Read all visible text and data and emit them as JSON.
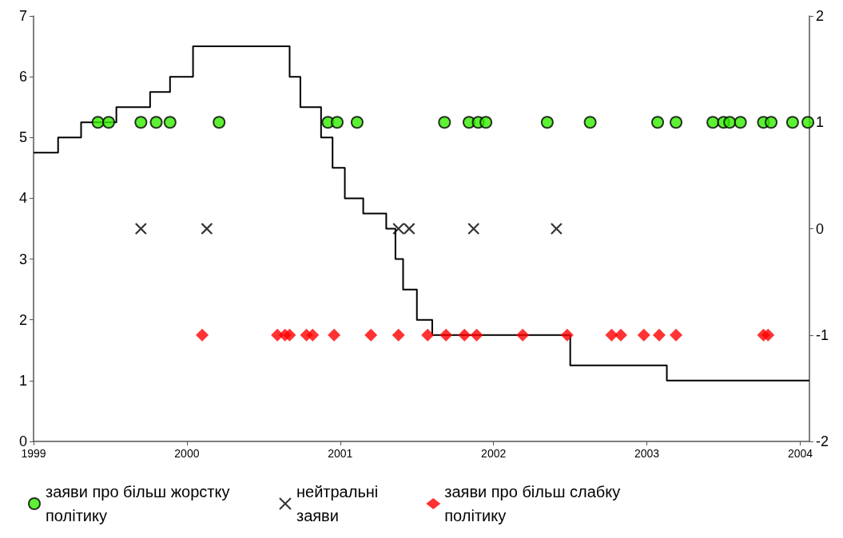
{
  "chart_data": {
    "type": "scatter",
    "xlim": [
      1999,
      2004.06
    ],
    "xticks": [
      1999,
      2000,
      2001,
      2002,
      2003,
      2004
    ],
    "ylim": [
      0,
      7
    ],
    "yticks": [
      0,
      1,
      2,
      3,
      4,
      5,
      6,
      7
    ],
    "y2lim": [
      -2,
      2
    ],
    "y2ticks": [
      -2,
      -1,
      0,
      1,
      2
    ],
    "grid": false,
    "legend": "bottom",
    "series": [
      {
        "type": "step",
        "color": "#000000",
        "marker": "none",
        "x": [
          1999,
          1999.16,
          1999.31,
          1999.54,
          1999.76,
          1999.89,
          2000.04,
          2000.67,
          2000.74,
          2000.875,
          2000.95,
          2001.03,
          2001.15,
          2001.3,
          2001.36,
          2001.41,
          2001.5,
          2001.6,
          2002.5,
          2003.13,
          2004.06
        ],
        "values": [
          4.75,
          5,
          5.25,
          5.5,
          5.75,
          6,
          6.5,
          6,
          5.5,
          5,
          4.5,
          4,
          3.75,
          3.5,
          3,
          2.5,
          2,
          1.75,
          1.25,
          1,
          1
        ]
      },
      {
        "name": "заяви про більш жорстку політику",
        "color": "#33ee00",
        "marker": "circle",
        "axis": "y2",
        "x": [
          1999.42,
          1999.49,
          1999.7,
          1999.8,
          1999.89,
          2000.21,
          2000.92,
          2000.98,
          2001.11,
          2001.68,
          2001.84,
          2001.9,
          2001.95,
          2002.35,
          2002.63,
          2003.07,
          2003.19,
          2003.43,
          2003.5,
          2003.54,
          2003.61,
          2003.76,
          2003.81,
          2003.95,
          2004.05
        ],
        "values": [
          1,
          1,
          1,
          1,
          1,
          1,
          1,
          1,
          1,
          1,
          1,
          1,
          1,
          1,
          1,
          1,
          1,
          1,
          1,
          1,
          1,
          1,
          1,
          1,
          1
        ]
      },
      {
        "name": "нейтральні заяви",
        "color": "#000000",
        "marker": "cross",
        "axis": "y2",
        "x": [
          1999.7,
          2000.13,
          2001.38,
          2001.45,
          2001.87,
          2002.41
        ],
        "values": [
          0,
          0,
          0,
          0,
          0,
          0
        ]
      },
      {
        "name": "заяви про більш слабку політику",
        "color": "#ff0000",
        "marker": "diamond",
        "axis": "y2",
        "x": [
          2000.1,
          2000.59,
          2000.64,
          2000.67,
          2000.78,
          2000.82,
          2000.96,
          2001.2,
          2001.38,
          2001.57,
          2001.69,
          2001.81,
          2001.89,
          2002.19,
          2002.48,
          2002.77,
          2002.83,
          2002.98,
          2003.08,
          2003.19,
          2003.76,
          2003.79
        ],
        "values": [
          -1,
          -1,
          -1,
          -1,
          -1,
          -1,
          -1,
          -1,
          -1,
          -1,
          -1,
          -1,
          -1,
          -1,
          -1,
          -1,
          -1,
          -1,
          -1,
          -1,
          -1,
          -1
        ]
      }
    ]
  }
}
